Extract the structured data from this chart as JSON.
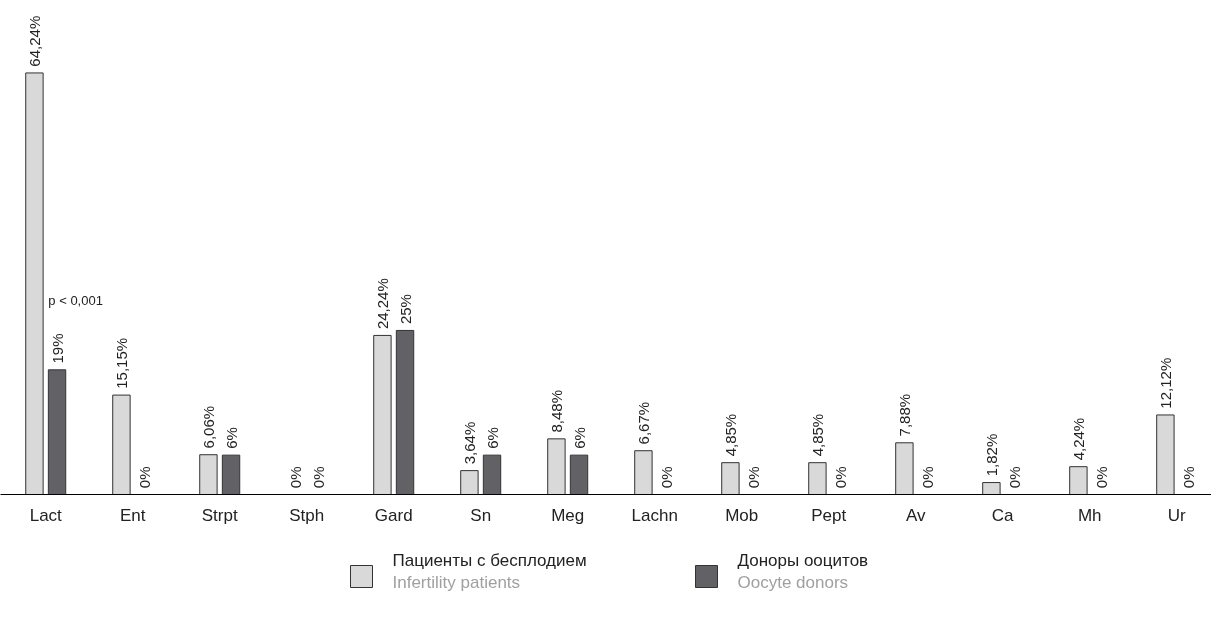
{
  "chart_data": {
    "type": "bar",
    "categories": [
      "Lact",
      "Ent",
      "Strpt",
      "Stph",
      "Gard",
      "Sn",
      "Meg",
      "Lachn",
      "Mob",
      "Pept",
      "Av",
      "Ca",
      "Mh",
      "Ur"
    ],
    "series": [
      {
        "name": "Пациенты с бесплодием\nInfertility patients",
        "color": "#d9d9d9",
        "values": [
          64.24,
          15.15,
          6.06,
          0,
          24.24,
          3.64,
          8.48,
          6.67,
          4.85,
          4.85,
          7.88,
          1.82,
          4.24,
          12.12
        ],
        "value_labels": [
          "64,24%",
          "15,15%",
          "6,06%",
          "0%",
          "24,24%",
          "3,64%",
          "8,48%",
          "6,67%",
          "4,85%",
          "4,85%",
          "7,88%",
          "1,82%",
          "4,24%",
          "12,12%"
        ]
      },
      {
        "name": "Доноры ооцитов\nOocyte donors",
        "color": "#616166",
        "values": [
          19,
          0,
          6,
          0,
          25,
          6,
          6,
          0,
          0,
          0,
          0,
          0,
          0,
          0
        ],
        "value_labels": [
          "19%",
          "0%",
          "6%",
          "0%",
          "25%",
          "6%",
          "6%",
          "0%",
          "0%",
          "0%",
          "0%",
          "0%",
          "0%",
          "0%"
        ]
      }
    ],
    "annotations": [
      {
        "text": "p < 0,001",
        "x": "Lact",
        "y": 29.5
      }
    ],
    "grid": false,
    "legend": "bottom"
  }
}
